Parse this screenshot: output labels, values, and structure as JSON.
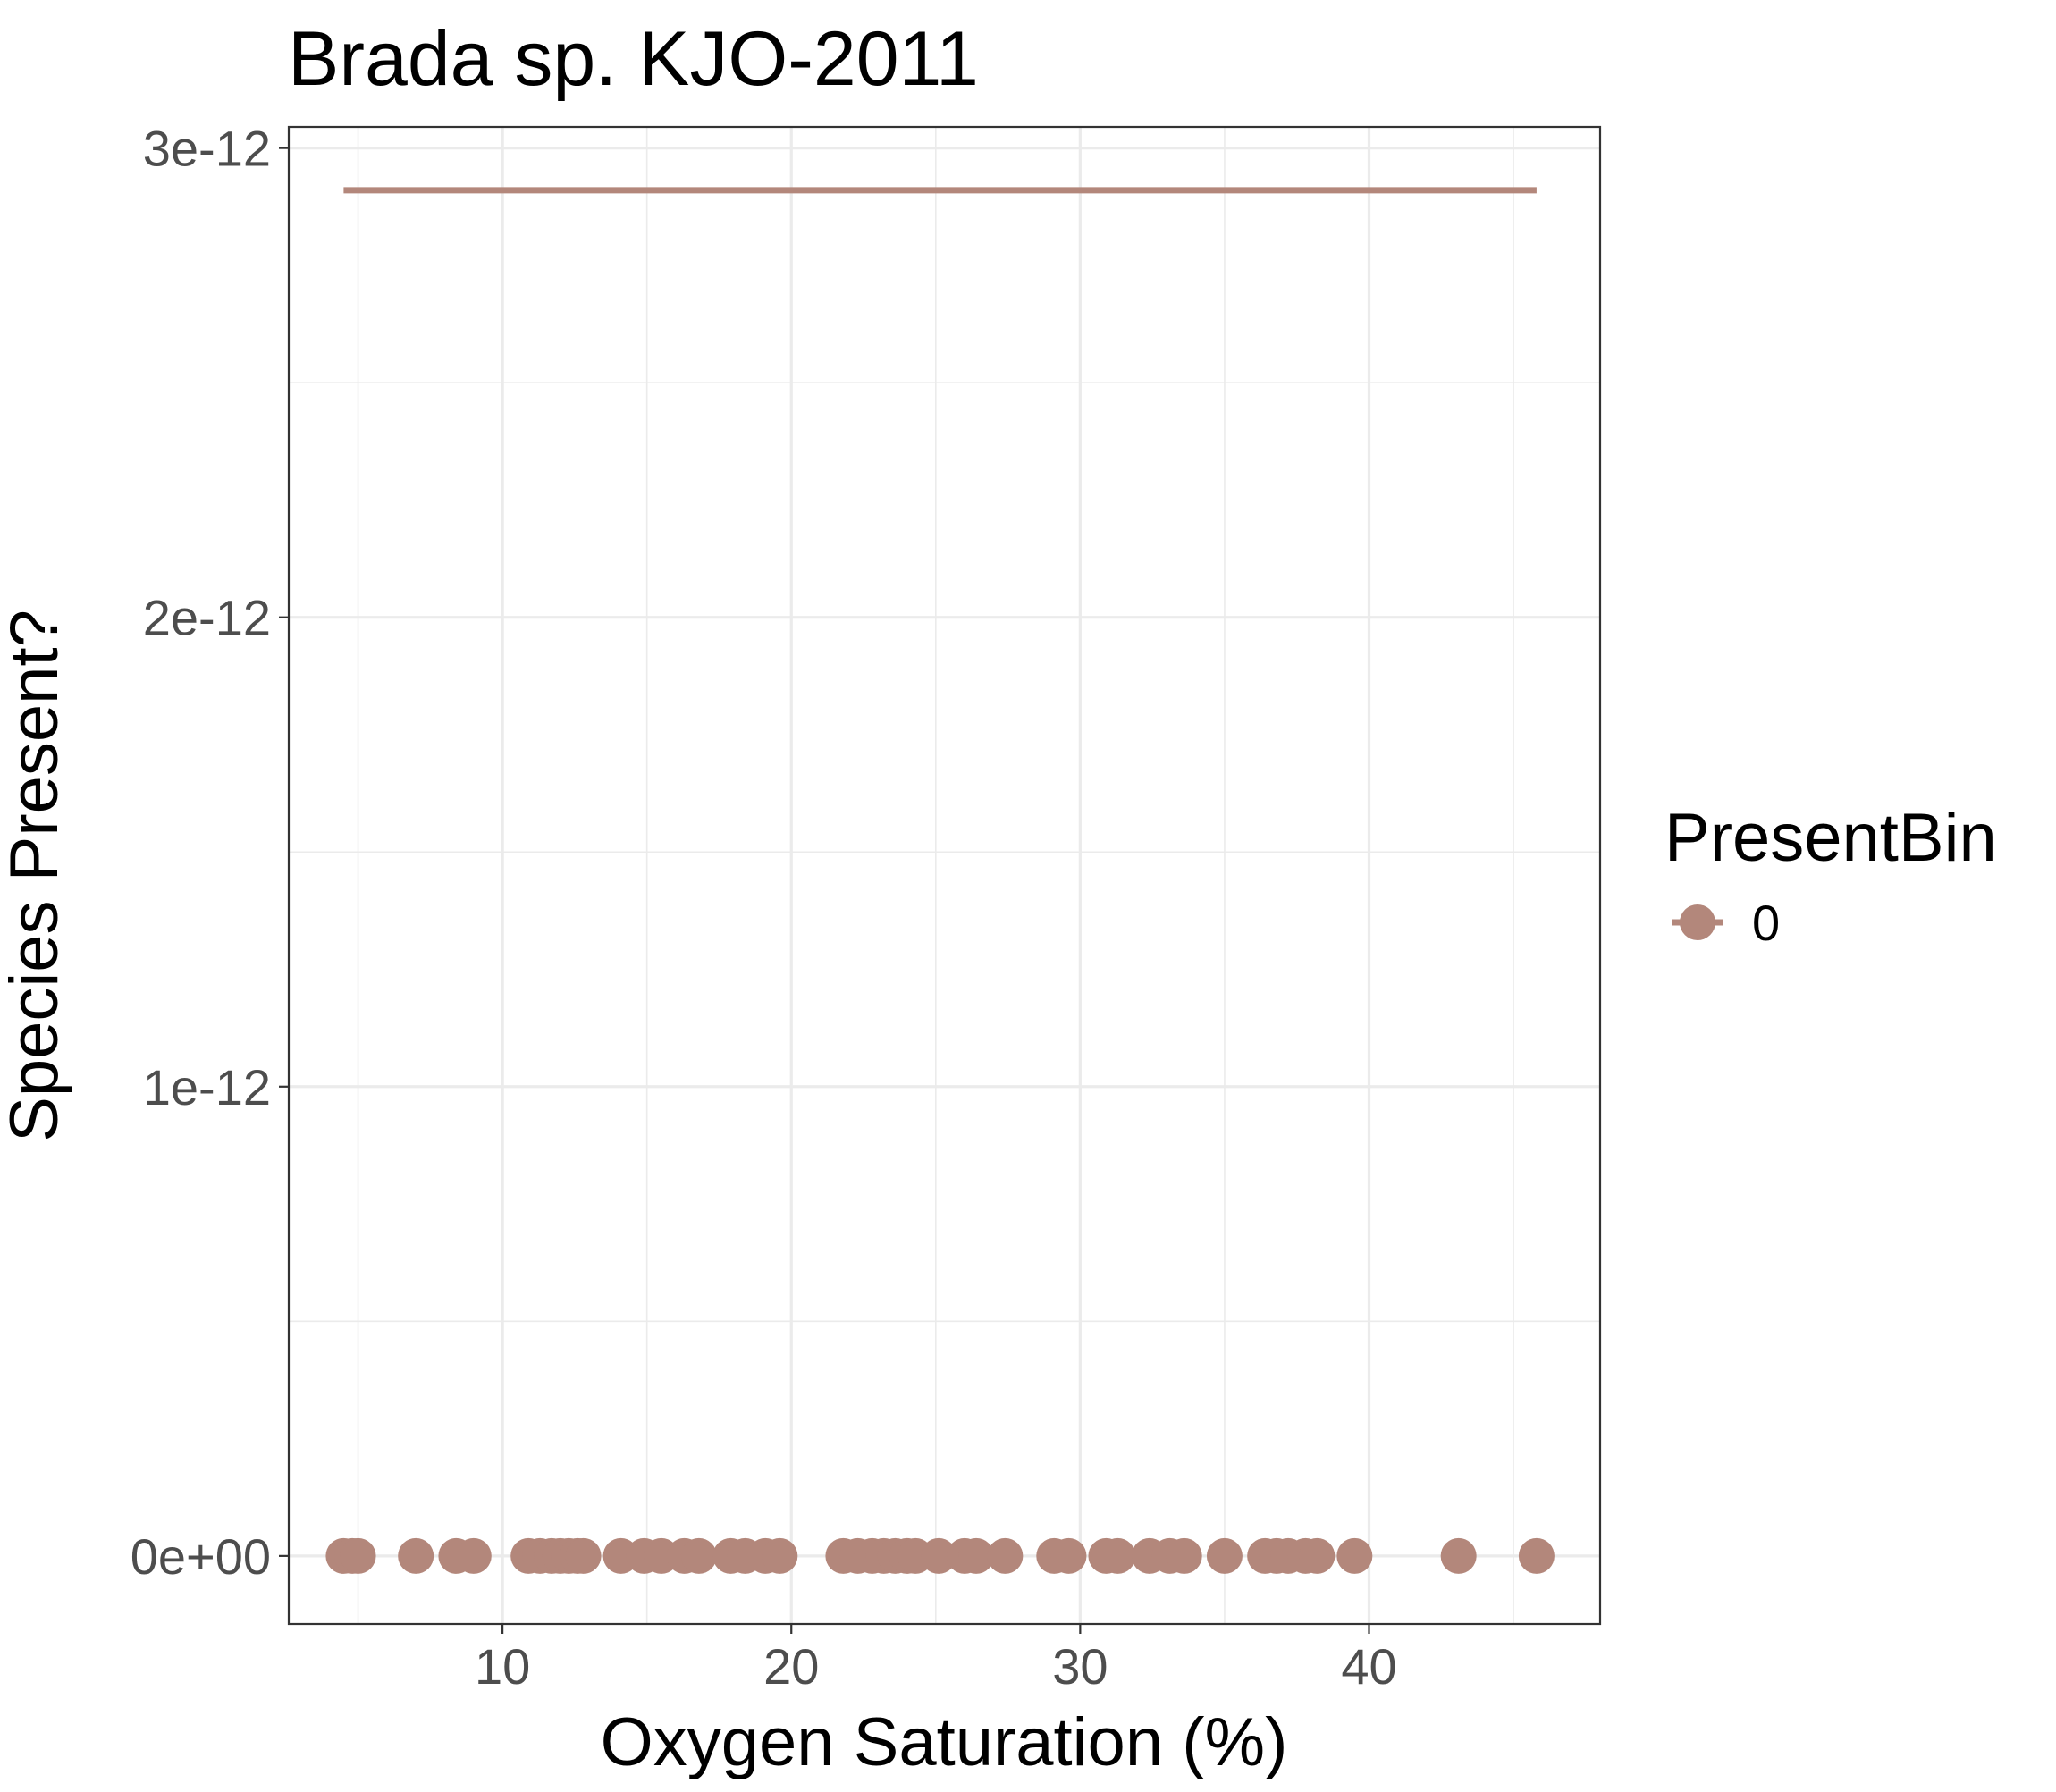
{
  "chart_data": {
    "type": "scatter",
    "title": "Brada sp. KJO-2011",
    "xlabel": "Oxygen Saturation (%)",
    "ylabel": "Species Present?",
    "xlim": [
      2.6,
      48.0
    ],
    "ylim": [
      -1.45e-13,
      3.045e-12
    ],
    "x_ticks": [
      10,
      20,
      30,
      40
    ],
    "x_tick_labels": [
      "10",
      "20",
      "30",
      "40"
    ],
    "x_minor_ticks": [
      5,
      15,
      25,
      35,
      45
    ],
    "y_ticks": [
      0,
      1e-12,
      2e-12,
      3e-12
    ],
    "y_tick_labels": [
      "0e+00",
      "1e-12",
      "2e-12",
      "3e-12"
    ],
    "y_minor_ticks": [
      5e-13,
      1.5e-12,
      2.5e-12
    ],
    "grid": true,
    "legend": {
      "title": "PresentBin",
      "position": "right",
      "entries": [
        {
          "label": "0",
          "color": "#B3877B"
        }
      ]
    },
    "series": [
      {
        "name": "0",
        "color": "#B3877B",
        "points_x": [
          4.5,
          4.8,
          5.0,
          7.0,
          8.4,
          9.0,
          10.9,
          11.3,
          11.7,
          12.0,
          12.3,
          12.6,
          12.8,
          14.1,
          14.9,
          15.5,
          16.3,
          16.8,
          17.9,
          18.4,
          19.1,
          19.6,
          21.8,
          22.3,
          22.8,
          23.2,
          23.6,
          24.0,
          24.3,
          25.1,
          26.0,
          26.4,
          27.4,
          29.1,
          29.6,
          30.9,
          31.3,
          32.4,
          33.1,
          33.6,
          35.0,
          36.4,
          36.8,
          37.2,
          37.8,
          38.2,
          39.5,
          43.1,
          45.8
        ],
        "points_y": [
          0,
          0,
          0,
          0,
          0,
          0,
          0,
          0,
          0,
          0,
          0,
          0,
          0,
          0,
          0,
          0,
          0,
          0,
          0,
          0,
          0,
          0,
          0,
          0,
          0,
          0,
          0,
          0,
          0,
          0,
          0,
          0,
          0,
          0,
          0,
          0,
          0,
          0,
          0,
          0,
          0,
          0,
          0,
          0,
          0,
          0,
          0,
          0,
          0
        ],
        "fit_line": {
          "x": [
            4.5,
            45.8
          ],
          "y": [
            2.91e-12,
            2.91e-12
          ]
        }
      }
    ]
  }
}
